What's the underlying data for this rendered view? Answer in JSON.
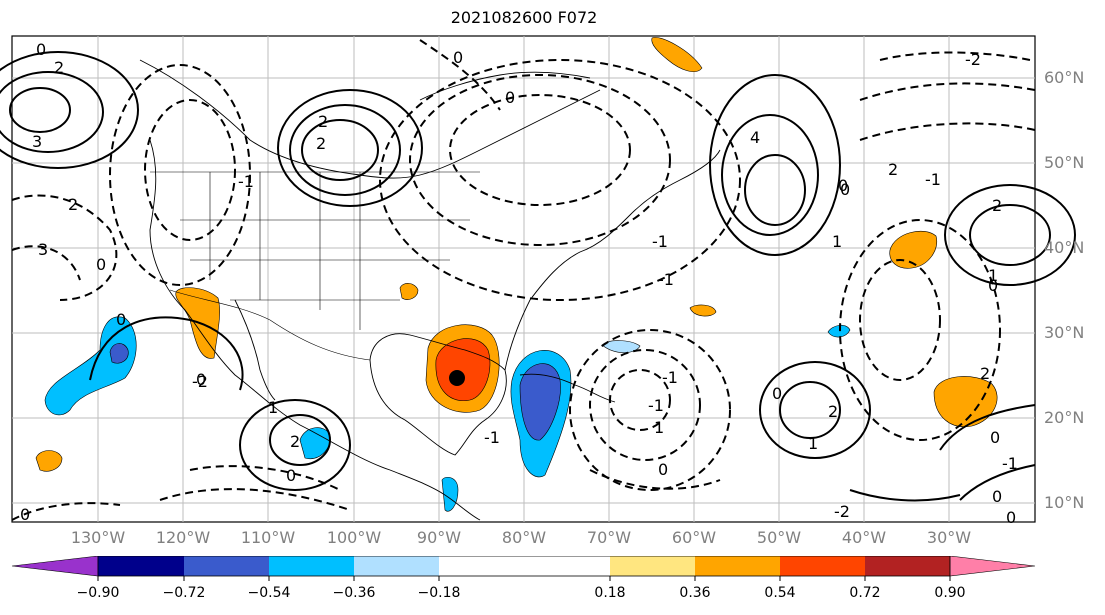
{
  "title": "2021082600 F072",
  "lat_labels": [
    "60°N",
    "50°N",
    "40°N",
    "30°N",
    "20°N",
    "10°N"
  ],
  "lon_labels": [
    "130°W",
    "120°W",
    "110°W",
    "100°W",
    "90°W",
    "80°W",
    "70°W",
    "60°W",
    "50°W",
    "40°W",
    "30°W"
  ],
  "colorbar": {
    "ticks": [
      "−0.90",
      "−0.72",
      "−0.54",
      "−0.36",
      "−0.18",
      "0.18",
      "0.36",
      "0.54",
      "0.72",
      "0.90"
    ],
    "colors": [
      "#9932cc",
      "#00008b",
      "#3a5bcc",
      "#00bfff",
      "#b0e0ff",
      "#ffffff",
      "#ffe680",
      "#ffa500",
      "#ff4500",
      "#b22222",
      "#ff7fa8"
    ]
  },
  "contour_labels": [
    "0",
    "2",
    "0",
    "3",
    "2",
    "0",
    "4",
    "2",
    "-1",
    "2",
    "-1",
    "2",
    "0",
    "-1",
    "0",
    "3",
    "0",
    "-2",
    "0",
    "1",
    "2",
    "-1",
    "-1",
    "0",
    "0",
    "1",
    "-1",
    "2",
    "0",
    "-2",
    "1",
    "2",
    "1",
    "0",
    "-1",
    "0",
    "2",
    "0",
    "0",
    "0",
    "-2",
    "1",
    "0",
    "-1"
  ]
}
